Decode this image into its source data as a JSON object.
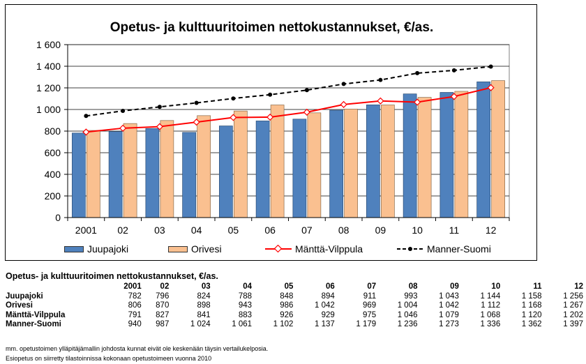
{
  "chart_data": {
    "type": "bar",
    "title": "Opetus- ja kulttuuritoimen nettokustannukset, €/as.",
    "categories": [
      "2001",
      "02",
      "03",
      "04",
      "05",
      "06",
      "07",
      "08",
      "09",
      "10",
      "11",
      "12"
    ],
    "ylim": [
      0,
      1600
    ],
    "yticks": [
      "0",
      "200",
      "400",
      "600",
      "800",
      "1 000",
      "1 200",
      "1 400",
      "1 600"
    ],
    "ytick_values": [
      0,
      200,
      400,
      600,
      800,
      1000,
      1200,
      1400,
      1600
    ],
    "grid": true,
    "legend_position": "bottom",
    "series": [
      {
        "name": "Juupajoki",
        "kind": "bar",
        "color": "#4f81bd",
        "values": [
          782,
          796,
          824,
          788,
          848,
          894,
          911,
          993,
          1043,
          1144,
          1158,
          1256
        ]
      },
      {
        "name": "Orivesi",
        "kind": "bar",
        "color": "#fac090",
        "values": [
          806,
          870,
          898,
          943,
          986,
          1042,
          969,
          1004,
          1042,
          1112,
          1168,
          1267
        ]
      },
      {
        "name": "Mänttä-Vilppula",
        "kind": "line",
        "color": "#ff0000",
        "values": [
          791,
          827,
          841,
          883,
          926,
          929,
          975,
          1046,
          1079,
          1068,
          1120,
          1202
        ]
      },
      {
        "name": "Manner-Suomi",
        "kind": "dashed-line",
        "color": "#000000",
        "values": [
          940,
          987,
          1024,
          1061,
          1102,
          1137,
          1179,
          1236,
          1273,
          1336,
          1362,
          1397
        ]
      }
    ]
  },
  "table": {
    "title": "Opetus- ja kulttuuritoimen nettokustannukset, €/as.",
    "years": [
      "2001",
      "02",
      "03",
      "04",
      "05",
      "06",
      "07",
      "08",
      "09",
      "10",
      "11",
      "12"
    ],
    "rows": [
      {
        "label": "Juupajoki",
        "values": [
          "782",
          "796",
          "824",
          "788",
          "848",
          "894",
          "911",
          "993",
          "1 043",
          "1 144",
          "1 158",
          "1 256"
        ]
      },
      {
        "label": "Orivesi",
        "values": [
          "806",
          "870",
          "898",
          "943",
          "986",
          "1 042",
          "969",
          "1 004",
          "1 042",
          "1 112",
          "1 168",
          "1 267"
        ]
      },
      {
        "label": "Mänttä-Vilppula",
        "values": [
          "791",
          "827",
          "841",
          "883",
          "926",
          "929",
          "975",
          "1 046",
          "1 079",
          "1 068",
          "1 120",
          "1 202"
        ]
      },
      {
        "label": "Manner-Suomi",
        "values": [
          "940",
          "987",
          "1 024",
          "1 061",
          "1 102",
          "1 137",
          "1 179",
          "1 236",
          "1 273",
          "1 336",
          "1 362",
          "1 397"
        ]
      }
    ]
  },
  "footnotes": [
    "mm. opetustoimen ylläpitäjämallin johdosta kunnat eivät ole keskenään täysin vertailukelposia.",
    "Esiopetus on siirretty tilastoinnissa kokonaan opetustoimeen vuonna 2010"
  ]
}
